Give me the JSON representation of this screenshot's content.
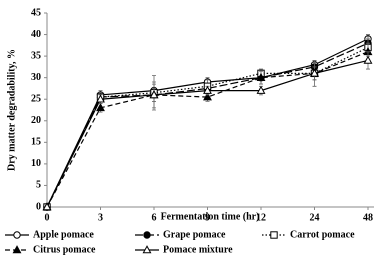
{
  "chart_data": {
    "type": "line",
    "x_label": "Fermentation time (hr)",
    "y_label": "Dry matter degradability,  %",
    "categories": [
      "0",
      "3",
      "6",
      "9",
      "12",
      "24",
      "48"
    ],
    "ylim": [
      0,
      45
    ],
    "yticks": [
      0,
      5,
      10,
      15,
      20,
      25,
      30,
      35,
      40,
      45
    ],
    "series": [
      {
        "name": "Apple pomace",
        "color": "#000000",
        "marker": "circle-open",
        "dash": "solid",
        "values": [
          0,
          26,
          27,
          29,
          30,
          33,
          39
        ],
        "errors": [
          0,
          1,
          1.5,
          1,
          1.5,
          1,
          1
        ]
      },
      {
        "name": "Grape pomace",
        "color": "#000000",
        "marker": "circle-filled",
        "dash": "longdash",
        "values": [
          0,
          25.5,
          26,
          27.5,
          30,
          32.5,
          38
        ],
        "errors": [
          0,
          1,
          1.5,
          1,
          1.5,
          1,
          1.5
        ]
      },
      {
        "name": "Carrot pomace",
        "color": "#000000",
        "marker": "square-open",
        "dash": "dotted",
        "values": [
          0,
          25.5,
          26.5,
          28,
          31,
          31,
          37
        ],
        "errors": [
          0,
          1,
          4,
          1.5,
          1,
          1.5,
          2
        ]
      },
      {
        "name": "Citrus pomace",
        "color": "#000000",
        "marker": "triangle-filled",
        "dash": "dashed",
        "values": [
          0,
          23,
          26,
          25.5,
          30,
          31,
          36
        ],
        "errors": [
          0,
          1,
          3,
          1,
          1.5,
          3,
          2
        ]
      },
      {
        "name": "Pomace mixture",
        "color": "#000000",
        "marker": "triangle-open",
        "dash": "solid",
        "values": [
          0,
          25,
          26,
          27,
          27,
          31,
          34
        ],
        "errors": [
          0,
          1,
          1.5,
          1,
          1,
          1.5,
          2
        ]
      }
    ]
  }
}
